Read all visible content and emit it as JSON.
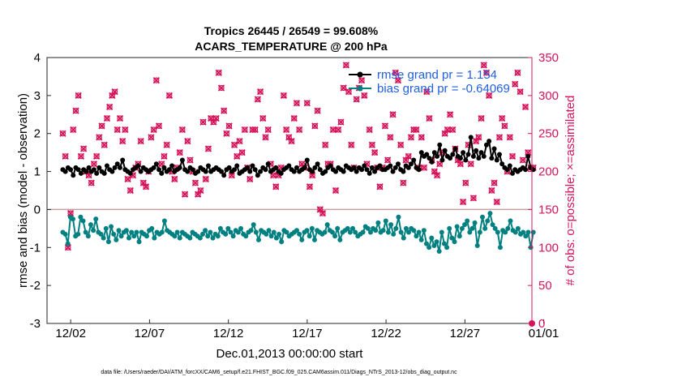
{
  "chart_data": {
    "type": "line",
    "title": "Tropics 26445 / 26549 = 99.608%",
    "subtitle": "ACARS_TEMPERATURE @ 200 hPa",
    "xlabel": "Dec.01,2013 00:00:00 start",
    "ylabel": "rmse and bias (model - observation)",
    "y2label": "# of obs: o=possible; ×=assimilated",
    "xlim": [
      0.5,
      31.25
    ],
    "ylim": [
      -3,
      4
    ],
    "y2lim": [
      0,
      350
    ],
    "x_tick_values": [
      2,
      7,
      12,
      17,
      22,
      27,
      32
    ],
    "x_tick_labels": [
      "12/02",
      "12/07",
      "12/12",
      "12/17",
      "12/22",
      "12/27",
      "01/01"
    ],
    "y_ticks": [
      -3,
      -2,
      -1,
      0,
      1,
      2,
      3,
      4
    ],
    "y2_ticks": [
      0,
      50,
      100,
      150,
      200,
      250,
      300,
      350
    ],
    "footnote": "data file: /Users/raeder/DAI/ATM_forcXX/CAM6_setup/f.e21.FHIST_BGC.f09_025.CAM6assim.011/Diags_NTrS_2013-12/obs_diag_output.nc",
    "legend": [
      {
        "label": "rmse grand pr = 1.154",
        "color": "#000000"
      },
      {
        "label": "bias grand pr = -0.64069",
        "color": "#008080"
      }
    ],
    "series": [
      {
        "name": "rmse",
        "color": "#000000",
        "axis": "left",
        "values": [
          1.05,
          1.0,
          1.1,
          1.05,
          0.9,
          1.1,
          1.05,
          0.95,
          1.05,
          1.0,
          1.1,
          1.0,
          1.05,
          0.95,
          1.1,
          1.0,
          0.95,
          1.15,
          1.05,
          1.0,
          1.1,
          1.2,
          1.1,
          1.3,
          1.05,
          1.0,
          0.95,
          1.05,
          1.1,
          1.15,
          1.0,
          1.1,
          1.05,
          1.0,
          1.05,
          1.1,
          1.2,
          1.05,
          0.95,
          1.1,
          1.0,
          1.05,
          1.15,
          1.0,
          1.05,
          1.1,
          1.3,
          1.05,
          1.0,
          1.1,
          1.05,
          0.95,
          1.0,
          1.1,
          1.05,
          1.0,
          1.15,
          1.0,
          1.05,
          1.1,
          1.05,
          1.0,
          0.9,
          1.05,
          1.1,
          1.0,
          1.05,
          1.15,
          0.95,
          1.0,
          1.05,
          1.1,
          1.0,
          1.15,
          1.05,
          0.9,
          1.0,
          1.1,
          1.05,
          1.2,
          1.0,
          1.05,
          1.1,
          1.0,
          0.95,
          1.05,
          1.1,
          1.15,
          1.05,
          1.0,
          1.1,
          1.0,
          1.05,
          1.1,
          1.3,
          1.05,
          1.0,
          1.1,
          1.2,
          1.05,
          0.95,
          1.0,
          1.1,
          1.15,
          1.05,
          1.0,
          1.1,
          1.05,
          1.0,
          1.15,
          1.1,
          1.05,
          1.1,
          1.0,
          1.1,
          1.05,
          1.15,
          1.05,
          0.95,
          1.1,
          1.0,
          1.1,
          1.15,
          1.05,
          1.05,
          1.1,
          1.15,
          1.0,
          1.1,
          1.2,
          1.05,
          1.0,
          1.15,
          1.1,
          1.2,
          1.3,
          1.1,
          1.05,
          1.5,
          1.4,
          1.45,
          1.35,
          1.25,
          1.5,
          1.4,
          1.7,
          1.3,
          1.55,
          1.4,
          1.35,
          1.45,
          1.6,
          1.4,
          1.35,
          1.5,
          1.3,
          1.45,
          1.9,
          1.4,
          1.55,
          1.35,
          1.5,
          1.4,
          1.7,
          1.8,
          1.35,
          1.6,
          1.3,
          1.45,
          1.2,
          1.1,
          1.05,
          1.15,
          0.95,
          1.05,
          1.0,
          1.05,
          1.1,
          1.05,
          1.4,
          1.1,
          1.05
        ]
      },
      {
        "name": "bias",
        "color": "#008080",
        "axis": "left",
        "values": [
          -0.6,
          -0.65,
          -0.9,
          -0.2,
          -0.25,
          -0.7,
          -0.65,
          -0.2,
          -0.3,
          -0.6,
          -0.7,
          -0.4,
          -0.55,
          -0.25,
          -0.6,
          -0.65,
          -0.75,
          -0.5,
          -0.85,
          -0.45,
          -0.65,
          -0.8,
          -0.55,
          -0.7,
          -0.6,
          -0.55,
          -0.75,
          -0.6,
          -0.7,
          -0.6,
          -0.85,
          -0.6,
          -0.65,
          -0.7,
          -0.55,
          -0.5,
          -0.75,
          -0.6,
          -0.65,
          -0.6,
          -0.3,
          -0.55,
          -0.6,
          -0.65,
          -0.7,
          -0.6,
          -0.75,
          -0.6,
          -0.65,
          -0.7,
          -0.75,
          -0.6,
          -0.65,
          -0.7,
          -0.75,
          -0.65,
          -0.55,
          -0.7,
          -0.6,
          -0.75,
          -0.65,
          -0.7,
          -0.5,
          -0.6,
          -0.65,
          -0.5,
          -0.6,
          -0.7,
          -0.55,
          -0.6,
          -0.5,
          -0.65,
          -0.7,
          -0.6,
          -0.55,
          -0.4,
          -0.6,
          -0.8,
          -0.55,
          -0.6,
          -0.65,
          -0.55,
          -0.7,
          -0.6,
          -0.75,
          -0.65,
          -0.85,
          -0.55,
          -0.6,
          -0.7,
          -0.65,
          -0.6,
          -0.55,
          -0.65,
          -0.8,
          -0.6,
          -0.55,
          -0.7,
          -0.5,
          -0.8,
          -0.55,
          -0.6,
          -0.65,
          -0.6,
          -0.4,
          -0.55,
          -0.6,
          -0.7,
          -0.5,
          -0.8,
          -0.6,
          -0.55,
          -0.5,
          -0.6,
          -0.5,
          -0.6,
          -0.7,
          -0.65,
          -0.6,
          -0.45,
          -0.5,
          -0.6,
          -0.5,
          -0.55,
          -0.35,
          -0.6,
          -0.55,
          -0.3,
          -0.6,
          -0.4,
          -0.65,
          -0.5,
          -0.2,
          -0.6,
          -0.75,
          -0.5,
          -0.6,
          -0.5,
          -0.55,
          -0.7,
          -0.6,
          -0.8,
          -0.55,
          -0.9,
          -1.0,
          -0.75,
          -0.95,
          -0.85,
          -1.1,
          -0.6,
          -0.9,
          -1.0,
          -0.5,
          -0.75,
          -0.85,
          -0.45,
          -0.7,
          -0.5,
          -0.4,
          -0.3,
          -0.6,
          -0.5,
          -0.35,
          -0.95,
          -0.6,
          -0.2,
          -0.5,
          -0.3,
          -0.1,
          -0.4,
          -0.5,
          -0.6,
          -1.0,
          -0.55,
          -0.6,
          -0.5,
          -0.3,
          -0.55,
          -0.6,
          -0.5,
          -0.65,
          -0.6,
          -0.7,
          -0.6,
          -1.0,
          -0.6
        ]
      },
      {
        "name": "obs possible (o)",
        "color": "#d6145a",
        "axis": "right",
        "marker": "o",
        "values": [
          250,
          220,
          100,
          145,
          255,
          280,
          300,
          220,
          230,
          200,
          195,
          185,
          210,
          220,
          245,
          260,
          235,
          270,
          285,
          300,
          305,
          255,
          270,
          240,
          255,
          190,
          175,
          195,
          205,
          210,
          240,
          185,
          180,
          200,
          245,
          255,
          320,
          260,
          210,
          220,
          235,
          300,
          200,
          190,
          205,
          225,
          255,
          170,
          240,
          215,
          200,
          185,
          170,
          175,
          265,
          190,
          230,
          270,
          265,
          270,
          330,
          310,
          280,
          250,
          260,
          195,
          235,
          220,
          240,
          225,
          255,
          205,
          190,
          255,
          255,
          295,
          305,
          270,
          245,
          255,
          210,
          195,
          180,
          195,
          205,
          300,
          255,
          245,
          240,
          270,
          290,
          255,
          210,
          205,
          290,
          180,
          195,
          260,
          280,
          150,
          145,
          235,
          210,
          210,
          255,
          175,
          255,
          265,
          310,
          340,
          305,
          235,
          205,
          295,
          310,
          320,
          300,
          210,
          255,
          235,
          225,
          205,
          180,
          205,
          260,
          215,
          245,
          275,
          330,
          320,
          235,
          185,
          215,
          220,
          245,
          255,
          255,
          205,
          245,
          205,
          305,
          270,
          215,
          200,
          195,
          210,
          225,
          250,
          255,
          275,
          255,
          230,
          215,
          210,
          160,
          185,
          235,
          210,
          165,
          240,
          245,
          270,
          340,
          330,
          300,
          175,
          185,
          160,
          245,
          270,
          260,
          200,
          245,
          220,
          315,
          330,
          305,
          215,
          285,
          225,
          205,
          205
        ]
      },
      {
        "name": "obs assimilated (x)",
        "color": "#d6145a",
        "axis": "right",
        "marker": "x",
        "values": [
          250,
          220,
          100,
          145,
          255,
          280,
          300,
          220,
          230,
          200,
          195,
          185,
          210,
          220,
          245,
          260,
          235,
          270,
          285,
          300,
          305,
          255,
          270,
          240,
          255,
          190,
          175,
          195,
          205,
          210,
          240,
          185,
          180,
          200,
          245,
          255,
          320,
          260,
          210,
          220,
          235,
          300,
          200,
          190,
          205,
          225,
          255,
          170,
          240,
          215,
          200,
          185,
          170,
          175,
          265,
          190,
          230,
          270,
          265,
          270,
          330,
          310,
          280,
          250,
          260,
          195,
          235,
          220,
          240,
          225,
          255,
          205,
          190,
          255,
          255,
          295,
          305,
          270,
          245,
          255,
          210,
          195,
          180,
          195,
          205,
          300,
          255,
          245,
          240,
          270,
          290,
          255,
          210,
          205,
          290,
          180,
          195,
          260,
          280,
          150,
          145,
          235,
          210,
          210,
          255,
          175,
          255,
          265,
          310,
          340,
          305,
          235,
          205,
          295,
          310,
          320,
          300,
          210,
          255,
          235,
          225,
          205,
          180,
          205,
          260,
          215,
          245,
          275,
          330,
          320,
          235,
          185,
          215,
          220,
          245,
          255,
          255,
          205,
          245,
          205,
          305,
          270,
          215,
          200,
          195,
          210,
          225,
          250,
          255,
          275,
          255,
          230,
          215,
          210,
          160,
          185,
          235,
          210,
          165,
          240,
          245,
          270,
          340,
          330,
          300,
          175,
          185,
          160,
          245,
          270,
          260,
          200,
          245,
          220,
          315,
          330,
          305,
          215,
          285,
          225,
          205,
          205
        ]
      }
    ]
  }
}
